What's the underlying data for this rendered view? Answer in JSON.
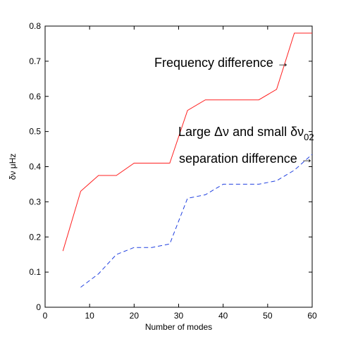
{
  "chart_data": {
    "type": "line",
    "xlabel": "Number of modes",
    "ylabel": "δν μHz",
    "xlim": [
      0,
      60
    ],
    "ylim": [
      0,
      0.8
    ],
    "x_ticks": [
      "0",
      "10",
      "20",
      "30",
      "40",
      "50",
      "60"
    ],
    "y_ticks": [
      "0",
      "0.1",
      "0.2",
      "0.3",
      "0.4",
      "0.5",
      "0.6",
      "0.7",
      "0.8"
    ],
    "grid": false,
    "series": [
      {
        "color": "#ff2020",
        "style": "solid",
        "x": [
          4,
          8,
          12,
          16,
          20,
          24,
          28,
          32,
          36,
          40,
          44,
          48,
          52,
          56,
          60
        ],
        "y": [
          0.16,
          0.33,
          0.375,
          0.375,
          0.41,
          0.41,
          0.41,
          0.56,
          0.59,
          0.59,
          0.59,
          0.59,
          0.62,
          0.78,
          0.78
        ]
      },
      {
        "color": "#2040e0",
        "style": "dashed",
        "x": [
          8,
          12,
          16,
          20,
          24,
          28,
          32,
          36,
          40,
          44,
          48,
          52,
          56,
          60
        ],
        "y": [
          0.057,
          0.095,
          0.15,
          0.17,
          0.17,
          0.18,
          0.31,
          0.32,
          0.35,
          0.35,
          0.35,
          0.36,
          0.39,
          0.435
        ]
      }
    ],
    "annotations": {
      "freq": {
        "text": "Frequency difference →"
      },
      "large_prefix": "Large Δν and small δν",
      "large_sub": "02",
      "sep": {
        "text": "separation difference →"
      }
    }
  }
}
